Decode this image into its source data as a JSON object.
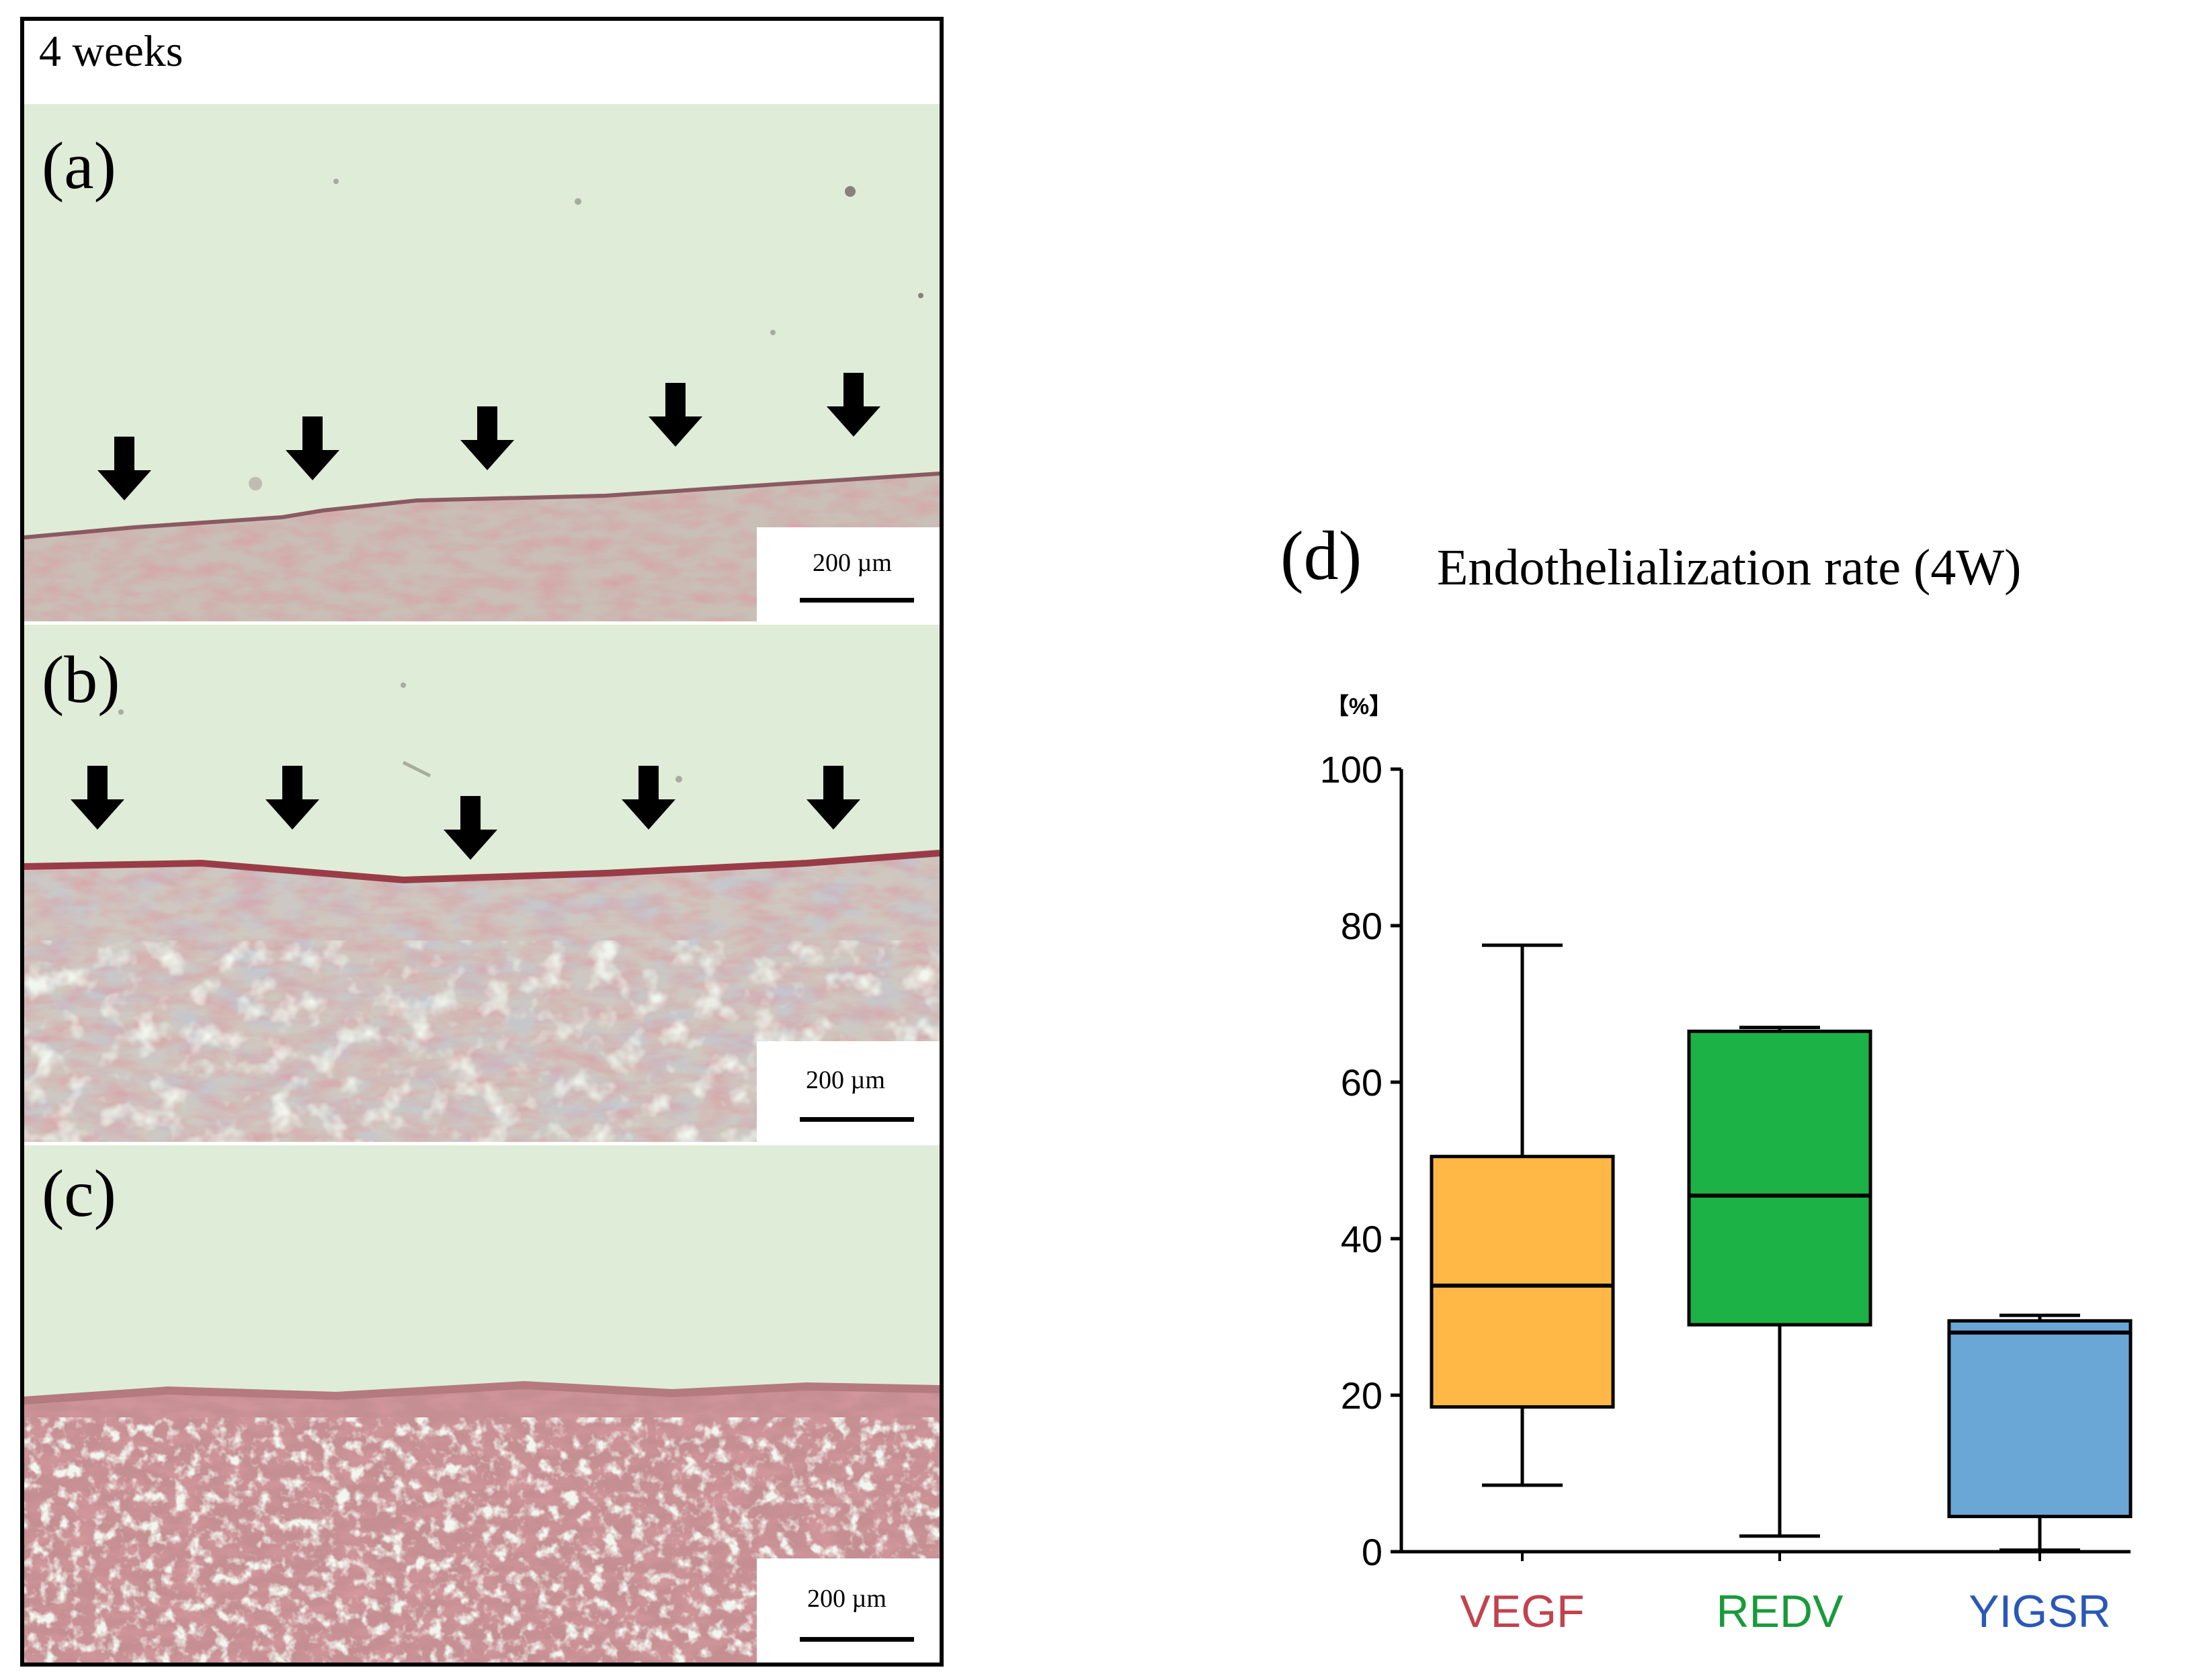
{
  "figure": {
    "micrograph_panel": {
      "timepoint_label": "4 weeks",
      "sub_panels": [
        {
          "label": "(a)",
          "scale_bar_text": "200 µm"
        },
        {
          "label": "(b)",
          "scale_bar_text": "200 µm"
        },
        {
          "label": "(c)",
          "scale_bar_text": "200 µm"
        }
      ]
    },
    "chart_panel": {
      "label": "(d)",
      "title": "Endothelialization rate (4W)",
      "unit_label": "【%】"
    }
  },
  "colors": {
    "tissue_bg": "#dfecd8",
    "tissue_red": "#b2545a",
    "tissue_blue": "#7b8fb8",
    "vegf_box": "#ffb846",
    "redv_box": "#1db245",
    "yigsr_box": "#6aa7d6",
    "vegf_label": "#c0434d",
    "redv_label": "#1a9a3b",
    "yigsr_label": "#2a58b8"
  },
  "chart_data": {
    "type": "box",
    "title": "Endothelialization rate (4W)",
    "ylabel": "【%】",
    "ylim": [
      0,
      100
    ],
    "yticks": [
      0,
      20,
      40,
      60,
      80,
      100
    ],
    "categories": [
      "VEGF",
      "REDV",
      "YIGSR"
    ],
    "series": [
      {
        "category": "VEGF",
        "min": 8.5,
        "q1": 18.5,
        "median": 34,
        "q3": 50.5,
        "max": 77.5
      },
      {
        "category": "REDV",
        "min": 2,
        "q1": 29,
        "median": 45.5,
        "q3": 66.5,
        "max": 67
      },
      {
        "category": "YIGSR",
        "min": 0.2,
        "q1": 4.5,
        "median": 28,
        "q3": 29.5,
        "max": 30.2
      }
    ]
  }
}
